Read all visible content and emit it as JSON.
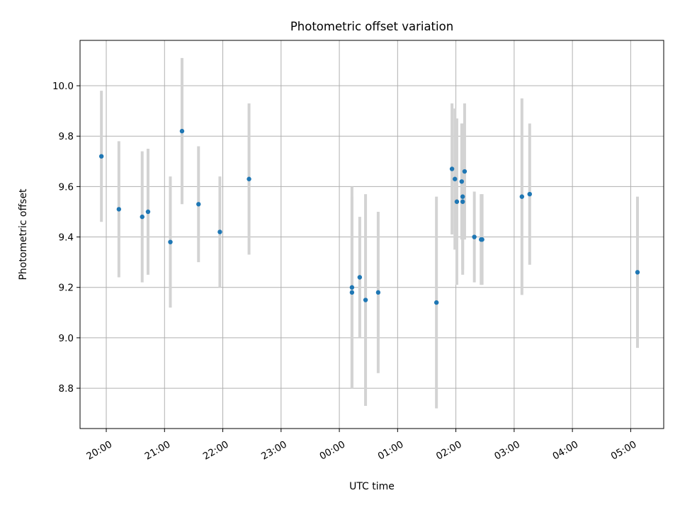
{
  "chart_data": {
    "type": "scatter",
    "title": "Photometric offset variation",
    "xlabel": "UTC time",
    "ylabel": "Photometric offset",
    "grid": true,
    "x_axis": "time",
    "xlim": [
      "19:33",
      "05:34"
    ],
    "ylim": [
      8.64,
      10.18
    ],
    "xticks": [
      "20:00",
      "21:00",
      "22:00",
      "23:00",
      "00:00",
      "01:00",
      "02:00",
      "03:00",
      "04:00",
      "05:00"
    ],
    "yticks": [
      "8.8",
      "9.0",
      "9.2",
      "9.4",
      "9.6",
      "9.8",
      "10.0"
    ],
    "colors": {
      "marker": "#1f77b4",
      "errorbar": "#d3d3d3",
      "grid": "#b0b0b0"
    },
    "series": [
      {
        "points": [
          {
            "x": "19:55",
            "y": 9.72,
            "yerr": 0.26
          },
          {
            "x": "20:13",
            "y": 9.51,
            "yerr": 0.27
          },
          {
            "x": "20:37",
            "y": 9.48,
            "yerr": 0.26
          },
          {
            "x": "20:43",
            "y": 9.5,
            "yerr": 0.25
          },
          {
            "x": "21:06",
            "y": 9.38,
            "yerr": 0.26
          },
          {
            "x": "21:18",
            "y": 9.82,
            "yerr": 0.29
          },
          {
            "x": "21:35",
            "y": 9.53,
            "yerr": 0.23
          },
          {
            "x": "21:57",
            "y": 9.42,
            "yerr": 0.22
          },
          {
            "x": "22:27",
            "y": 9.63,
            "yerr": 0.3
          },
          {
            "x": "00:13",
            "y": 9.2,
            "yerr": 0.4
          },
          {
            "x": "00:13",
            "y": 9.18,
            "yerr": 0.38
          },
          {
            "x": "00:21",
            "y": 9.24,
            "yerr": 0.24
          },
          {
            "x": "00:27",
            "y": 9.15,
            "yerr": 0.42
          },
          {
            "x": "00:40",
            "y": 9.18,
            "yerr": 0.32
          },
          {
            "x": "01:40",
            "y": 9.14,
            "yerr": 0.42
          },
          {
            "x": "01:56",
            "y": 9.67,
            "yerr": 0.26
          },
          {
            "x": "01:59",
            "y": 9.63,
            "yerr": 0.28
          },
          {
            "x": "02:01",
            "y": 9.54,
            "yerr": 0.33
          },
          {
            "x": "02:06",
            "y": 9.62,
            "yerr": 0.23
          },
          {
            "x": "02:07",
            "y": 9.56,
            "yerr": 0.29
          },
          {
            "x": "02:07",
            "y": 9.54,
            "yerr": 0.29
          },
          {
            "x": "02:09",
            "y": 9.66,
            "yerr": 0.27
          },
          {
            "x": "02:19",
            "y": 9.4,
            "yerr": 0.18
          },
          {
            "x": "02:26",
            "y": 9.39,
            "yerr": 0.18
          },
          {
            "x": "02:27",
            "y": 9.39,
            "yerr": 0.18
          },
          {
            "x": "03:08",
            "y": 9.56,
            "yerr": 0.39
          },
          {
            "x": "03:16",
            "y": 9.57,
            "yerr": 0.28
          },
          {
            "x": "05:07",
            "y": 9.26,
            "yerr": 0.3
          }
        ]
      }
    ]
  }
}
